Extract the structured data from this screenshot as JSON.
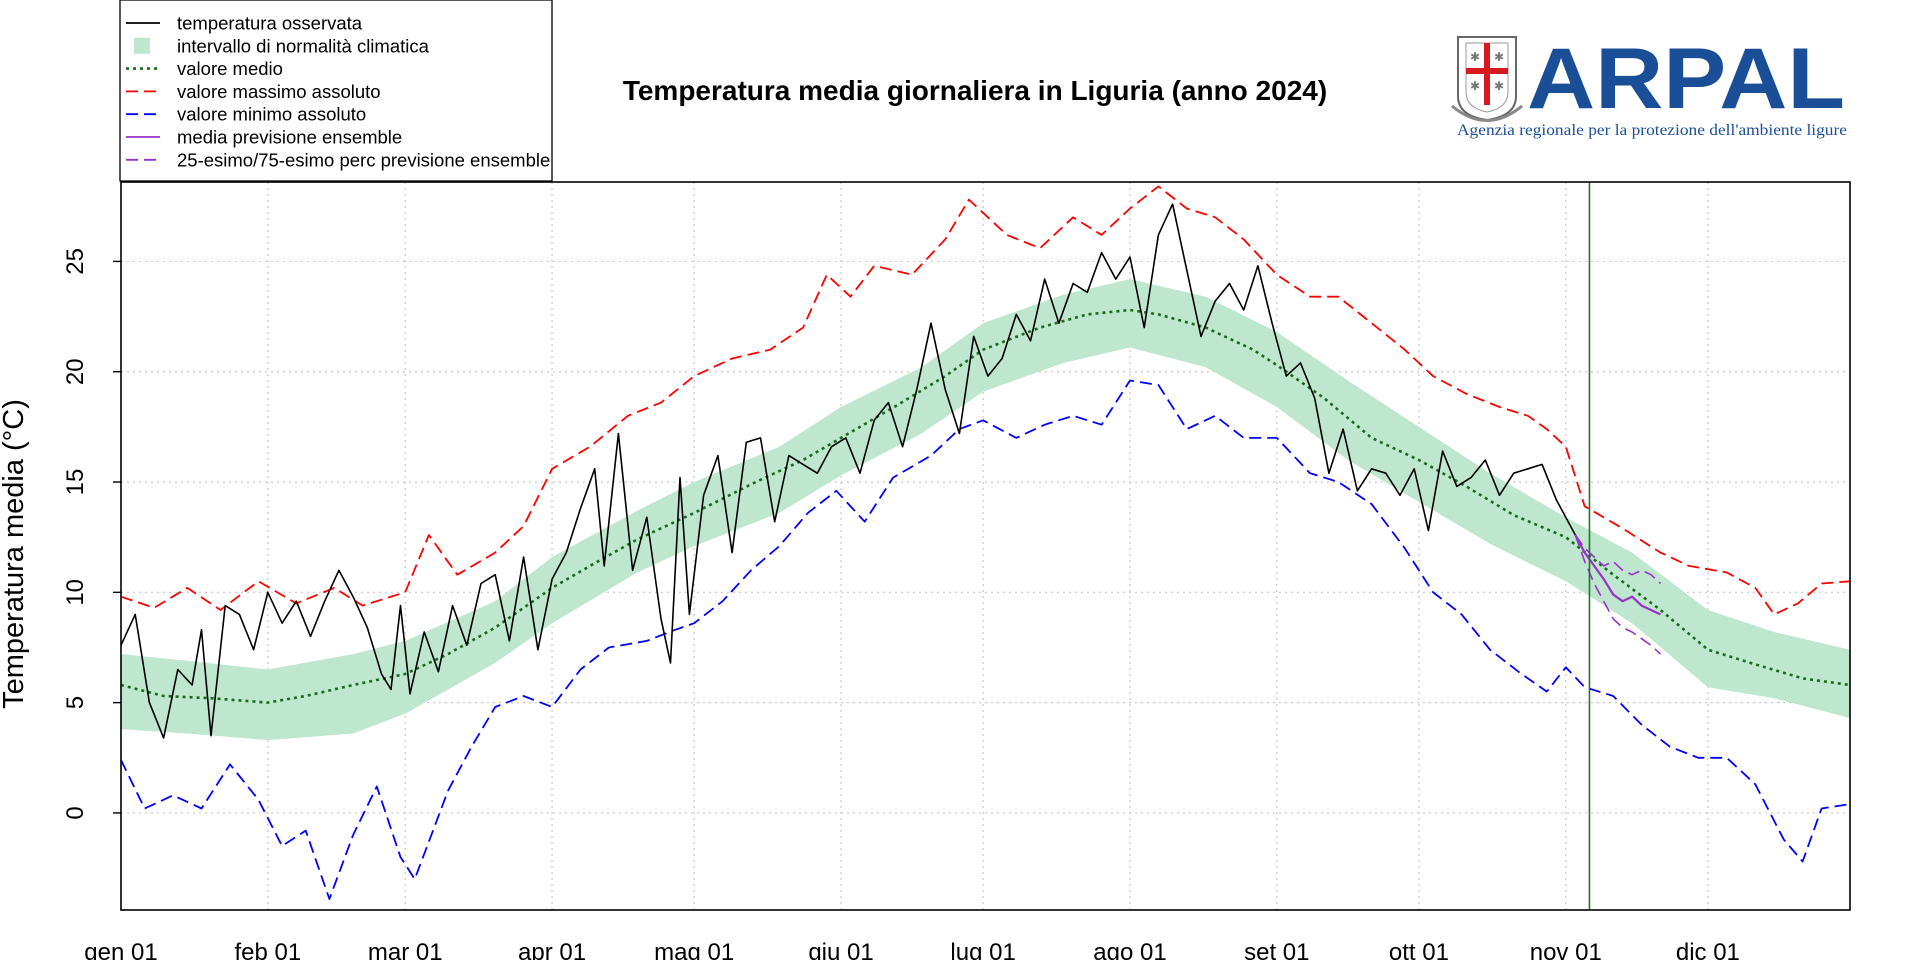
{
  "chart_data": {
    "type": "line",
    "title": "Temperatura media giornaliera in Liguria (anno 2024)",
    "ylabel": "Temperatura media (°C)",
    "xlabel": "",
    "x_unit": "day of year 2024 (1 = 1 Jan)",
    "xlim": [
      1,
      366
    ],
    "ylim": [
      -4.4,
      28.6
    ],
    "grid": true,
    "legend_position": "top-left",
    "y_ticks": [
      0,
      5,
      10,
      15,
      20,
      25
    ],
    "y_tick_labels": [
      "0",
      "5",
      "10",
      "15",
      "20",
      "25"
    ],
    "x_ticks": [
      1,
      32,
      61,
      92,
      122,
      153,
      183,
      214,
      245,
      275,
      306,
      336
    ],
    "x_tick_labels": [
      "gen 01",
      "feb 01",
      "mar 01",
      "apr 01",
      "mag 01",
      "giu 01",
      "lug 01",
      "ago 01",
      "set 01",
      "ott 01",
      "nov 01",
      "dic 01"
    ],
    "current_day_marker": 311,
    "legend": [
      {
        "key": "observed",
        "label": "temperatura osservata",
        "style": "solid",
        "color": "#000000"
      },
      {
        "key": "normal_band",
        "label": "intervallo di normalità climatica",
        "style": "box",
        "color": "#bfe6cf"
      },
      {
        "key": "mean",
        "label": "valore medio",
        "style": "dotted",
        "color": "#1a6b1a"
      },
      {
        "key": "max",
        "label": "valore massimo assoluto",
        "style": "dashed",
        "color": "#ff0000"
      },
      {
        "key": "min",
        "label": "valore minimo assoluto",
        "style": "dashed",
        "color": "#0000ff"
      },
      {
        "key": "ens_mean",
        "label": "media previsione ensemble",
        "style": "solid",
        "color": "#9932cc"
      },
      {
        "key": "ens_perc",
        "label": "25-esimo/75-esimo perc previsione ensemble",
        "style": "dashed",
        "color": "#9932cc"
      }
    ],
    "series": {
      "mean": [
        [
          1,
          5.8
        ],
        [
          10,
          5.3
        ],
        [
          20,
          5.2
        ],
        [
          32,
          5.0
        ],
        [
          40,
          5.3
        ],
        [
          50,
          5.8
        ],
        [
          61,
          6.3
        ],
        [
          70,
          7.2
        ],
        [
          80,
          8.4
        ],
        [
          92,
          10.2
        ],
        [
          100,
          11.2
        ],
        [
          110,
          12.4
        ],
        [
          122,
          13.6
        ],
        [
          135,
          15.0
        ],
        [
          145,
          16.0
        ],
        [
          153,
          17.0
        ],
        [
          165,
          18.5
        ],
        [
          175,
          19.8
        ],
        [
          183,
          21.0
        ],
        [
          195,
          22.0
        ],
        [
          205,
          22.6
        ],
        [
          214,
          22.8
        ],
        [
          220,
          22.6
        ],
        [
          230,
          22.0
        ],
        [
          240,
          21.0
        ],
        [
          245,
          20.3
        ],
        [
          255,
          18.8
        ],
        [
          265,
          17.0
        ],
        [
          275,
          16.0
        ],
        [
          285,
          14.8
        ],
        [
          295,
          13.5
        ],
        [
          306,
          12.5
        ],
        [
          316,
          10.8
        ],
        [
          326,
          9.2
        ],
        [
          336,
          7.4
        ],
        [
          345,
          6.8
        ],
        [
          356,
          6.1
        ],
        [
          366,
          5.8
        ]
      ],
      "band_upper": [
        [
          1,
          7.2
        ],
        [
          15,
          6.9
        ],
        [
          32,
          6.5
        ],
        [
          50,
          7.2
        ],
        [
          61,
          7.8
        ],
        [
          80,
          9.6
        ],
        [
          92,
          11.6
        ],
        [
          110,
          13.7
        ],
        [
          122,
          15.0
        ],
        [
          140,
          16.6
        ],
        [
          153,
          18.4
        ],
        [
          170,
          20.2
        ],
        [
          183,
          22.2
        ],
        [
          200,
          23.5
        ],
        [
          214,
          24.2
        ],
        [
          230,
          23.4
        ],
        [
          245,
          21.8
        ],
        [
          260,
          19.6
        ],
        [
          275,
          17.5
        ],
        [
          290,
          15.4
        ],
        [
          306,
          13.4
        ],
        [
          320,
          11.8
        ],
        [
          336,
          9.2
        ],
        [
          350,
          8.2
        ],
        [
          366,
          7.4
        ]
      ],
      "band_lower": [
        [
          1,
          3.8
        ],
        [
          15,
          3.6
        ],
        [
          32,
          3.3
        ],
        [
          50,
          3.6
        ],
        [
          61,
          4.5
        ],
        [
          80,
          6.8
        ],
        [
          92,
          8.6
        ],
        [
          110,
          10.9
        ],
        [
          122,
          12.1
        ],
        [
          140,
          13.6
        ],
        [
          153,
          15.3
        ],
        [
          170,
          17.2
        ],
        [
          183,
          19.1
        ],
        [
          200,
          20.4
        ],
        [
          214,
          21.1
        ],
        [
          230,
          20.2
        ],
        [
          245,
          18.4
        ],
        [
          260,
          16.0
        ],
        [
          275,
          14.1
        ],
        [
          290,
          12.2
        ],
        [
          306,
          10.5
        ],
        [
          320,
          8.6
        ],
        [
          336,
          5.7
        ],
        [
          350,
          5.2
        ],
        [
          366,
          4.3
        ]
      ],
      "max": [
        [
          1,
          9.8
        ],
        [
          8,
          9.3
        ],
        [
          15,
          10.2
        ],
        [
          22,
          9.2
        ],
        [
          30,
          10.5
        ],
        [
          38,
          9.5
        ],
        [
          46,
          10.2
        ],
        [
          52,
          9.4
        ],
        [
          61,
          10.0
        ],
        [
          66,
          12.6
        ],
        [
          72,
          10.8
        ],
        [
          80,
          11.8
        ],
        [
          86,
          13.0
        ],
        [
          92,
          15.6
        ],
        [
          100,
          16.6
        ],
        [
          108,
          18.0
        ],
        [
          115,
          18.6
        ],
        [
          122,
          19.8
        ],
        [
          130,
          20.6
        ],
        [
          138,
          21.0
        ],
        [
          145,
          22.0
        ],
        [
          150,
          24.4
        ],
        [
          155,
          23.4
        ],
        [
          160,
          24.8
        ],
        [
          168,
          24.4
        ],
        [
          175,
          26.0
        ],
        [
          180,
          27.8
        ],
        [
          188,
          26.2
        ],
        [
          195,
          25.6
        ],
        [
          202,
          27.0
        ],
        [
          208,
          26.2
        ],
        [
          214,
          27.4
        ],
        [
          220,
          28.4
        ],
        [
          226,
          27.4
        ],
        [
          232,
          27.0
        ],
        [
          238,
          26.0
        ],
        [
          245,
          24.4
        ],
        [
          252,
          23.4
        ],
        [
          258,
          23.4
        ],
        [
          265,
          22.2
        ],
        [
          272,
          21.0
        ],
        [
          278,
          19.8
        ],
        [
          285,
          19.0
        ],
        [
          292,
          18.4
        ],
        [
          298,
          18.0
        ],
        [
          302,
          17.4
        ],
        [
          306,
          16.6
        ],
        [
          310,
          13.9
        ],
        [
          318,
          12.9
        ],
        [
          326,
          11.8
        ],
        [
          332,
          11.2
        ],
        [
          340,
          10.9
        ],
        [
          346,
          10.2
        ],
        [
          350,
          9.0
        ],
        [
          355,
          9.5
        ],
        [
          360,
          10.4
        ],
        [
          366,
          10.5
        ]
      ],
      "min": [
        [
          1,
          2.4
        ],
        [
          6,
          0.2
        ],
        [
          12,
          0.8
        ],
        [
          18,
          0.2
        ],
        [
          24,
          2.2
        ],
        [
          30,
          0.6
        ],
        [
          35,
          -1.5
        ],
        [
          40,
          -0.8
        ],
        [
          45,
          -3.9
        ],
        [
          50,
          -1.0
        ],
        [
          55,
          1.2
        ],
        [
          60,
          -2.0
        ],
        [
          63,
          -3.0
        ],
        [
          66,
          -1.3
        ],
        [
          70,
          1.0
        ],
        [
          75,
          3.0
        ],
        [
          80,
          4.8
        ],
        [
          86,
          5.3
        ],
        [
          92,
          4.8
        ],
        [
          98,
          6.5
        ],
        [
          104,
          7.5
        ],
        [
          112,
          7.8
        ],
        [
          118,
          8.3
        ],
        [
          122,
          8.6
        ],
        [
          128,
          9.6
        ],
        [
          134,
          11.0
        ],
        [
          140,
          12.1
        ],
        [
          146,
          13.6
        ],
        [
          152,
          14.6
        ],
        [
          158,
          13.2
        ],
        [
          164,
          15.2
        ],
        [
          172,
          16.2
        ],
        [
          178,
          17.4
        ],
        [
          183,
          17.8
        ],
        [
          190,
          17.0
        ],
        [
          196,
          17.6
        ],
        [
          202,
          18.0
        ],
        [
          208,
          17.6
        ],
        [
          214,
          19.6
        ],
        [
          220,
          19.4
        ],
        [
          226,
          17.4
        ],
        [
          232,
          18.0
        ],
        [
          238,
          17.0
        ],
        [
          245,
          17.0
        ],
        [
          252,
          15.4
        ],
        [
          258,
          15.0
        ],
        [
          265,
          14.0
        ],
        [
          272,
          12.0
        ],
        [
          278,
          10.0
        ],
        [
          284,
          9.0
        ],
        [
          290,
          7.4
        ],
        [
          296,
          6.4
        ],
        [
          302,
          5.5
        ],
        [
          306,
          6.6
        ],
        [
          310,
          5.7
        ],
        [
          316,
          5.3
        ],
        [
          322,
          4.0
        ],
        [
          328,
          3.0
        ],
        [
          334,
          2.5
        ],
        [
          340,
          2.5
        ],
        [
          346,
          1.3
        ],
        [
          352,
          -1.2
        ],
        [
          356,
          -2.2
        ],
        [
          360,
          0.2
        ],
        [
          366,
          0.4
        ]
      ],
      "observed": [
        [
          1,
          7.6
        ],
        [
          4,
          9.0
        ],
        [
          7,
          5.0
        ],
        [
          10,
          3.4
        ],
        [
          13,
          6.5
        ],
        [
          16,
          5.8
        ],
        [
          18,
          8.3
        ],
        [
          20,
          3.5
        ],
        [
          23,
          9.4
        ],
        [
          26,
          9.0
        ],
        [
          29,
          7.4
        ],
        [
          32,
          10.0
        ],
        [
          35,
          8.6
        ],
        [
          38,
          9.6
        ],
        [
          41,
          8.0
        ],
        [
          44,
          9.6
        ],
        [
          47,
          11.0
        ],
        [
          50,
          9.8
        ],
        [
          53,
          8.4
        ],
        [
          56,
          6.3
        ],
        [
          58,
          5.6
        ],
        [
          60,
          9.4
        ],
        [
          62,
          5.4
        ],
        [
          65,
          8.2
        ],
        [
          68,
          6.4
        ],
        [
          71,
          9.4
        ],
        [
          74,
          7.6
        ],
        [
          77,
          10.4
        ],
        [
          80,
          10.8
        ],
        [
          83,
          7.8
        ],
        [
          86,
          11.6
        ],
        [
          89,
          7.4
        ],
        [
          92,
          10.6
        ],
        [
          95,
          11.8
        ],
        [
          98,
          13.8
        ],
        [
          101,
          15.6
        ],
        [
          103,
          11.2
        ],
        [
          106,
          17.2
        ],
        [
          109,
          11.0
        ],
        [
          112,
          13.4
        ],
        [
          115,
          8.8
        ],
        [
          117,
          6.8
        ],
        [
          119,
          15.2
        ],
        [
          121,
          9.0
        ],
        [
          124,
          14.4
        ],
        [
          127,
          16.2
        ],
        [
          130,
          11.8
        ],
        [
          133,
          16.8
        ],
        [
          136,
          17.0
        ],
        [
          139,
          13.2
        ],
        [
          142,
          16.2
        ],
        [
          145,
          15.8
        ],
        [
          148,
          15.4
        ],
        [
          151,
          16.6
        ],
        [
          154,
          17.0
        ],
        [
          157,
          15.4
        ],
        [
          160,
          17.8
        ],
        [
          163,
          18.6
        ],
        [
          166,
          16.6
        ],
        [
          169,
          19.2
        ],
        [
          172,
          22.2
        ],
        [
          175,
          19.2
        ],
        [
          178,
          17.2
        ],
        [
          181,
          21.6
        ],
        [
          184,
          19.8
        ],
        [
          187,
          20.6
        ],
        [
          190,
          22.6
        ],
        [
          193,
          21.4
        ],
        [
          196,
          24.2
        ],
        [
          199,
          22.2
        ],
        [
          202,
          24.0
        ],
        [
          205,
          23.6
        ],
        [
          208,
          25.4
        ],
        [
          211,
          24.2
        ],
        [
          214,
          25.2
        ],
        [
          217,
          22.0
        ],
        [
          220,
          26.2
        ],
        [
          223,
          27.6
        ],
        [
          226,
          24.6
        ],
        [
          229,
          21.6
        ],
        [
          232,
          23.2
        ],
        [
          235,
          24.0
        ],
        [
          238,
          22.8
        ],
        [
          241,
          24.8
        ],
        [
          244,
          22.2
        ],
        [
          247,
          19.8
        ],
        [
          250,
          20.4
        ],
        [
          253,
          18.8
        ],
        [
          256,
          15.4
        ],
        [
          259,
          17.4
        ],
        [
          262,
          14.6
        ],
        [
          265,
          15.6
        ],
        [
          268,
          15.4
        ],
        [
          271,
          14.4
        ],
        [
          274,
          15.6
        ],
        [
          277,
          12.8
        ],
        [
          280,
          16.4
        ],
        [
          283,
          14.8
        ],
        [
          286,
          15.2
        ],
        [
          289,
          16.0
        ],
        [
          292,
          14.4
        ],
        [
          295,
          15.4
        ],
        [
          298,
          15.6
        ],
        [
          301,
          15.8
        ],
        [
          304,
          14.2
        ],
        [
          308,
          12.6
        ]
      ],
      "ens_mean": [
        [
          308,
          12.6
        ],
        [
          310,
          11.8
        ],
        [
          312,
          11.2
        ],
        [
          314,
          10.6
        ],
        [
          316,
          9.9
        ],
        [
          318,
          9.6
        ],
        [
          320,
          9.8
        ],
        [
          322,
          9.4
        ],
        [
          324,
          9.2
        ],
        [
          326,
          9.0
        ]
      ],
      "ens_p75": [
        [
          308,
          12.6
        ],
        [
          310,
          12.0
        ],
        [
          312,
          11.6
        ],
        [
          314,
          11.2
        ],
        [
          316,
          11.4
        ],
        [
          318,
          11.0
        ],
        [
          320,
          10.8
        ],
        [
          322,
          11.0
        ],
        [
          324,
          10.8
        ],
        [
          326,
          10.4
        ]
      ],
      "ens_p25": [
        [
          308,
          12.6
        ],
        [
          310,
          11.4
        ],
        [
          312,
          10.4
        ],
        [
          314,
          9.6
        ],
        [
          316,
          8.8
        ],
        [
          318,
          8.4
        ],
        [
          320,
          8.2
        ],
        [
          322,
          7.9
        ],
        [
          324,
          7.6
        ],
        [
          326,
          7.2
        ]
      ]
    }
  },
  "logo": {
    "name": "ARPAL",
    "subtitle": "Agenzia regionale per la protezione dell'ambiente ligure",
    "color": "#1a4e97"
  }
}
